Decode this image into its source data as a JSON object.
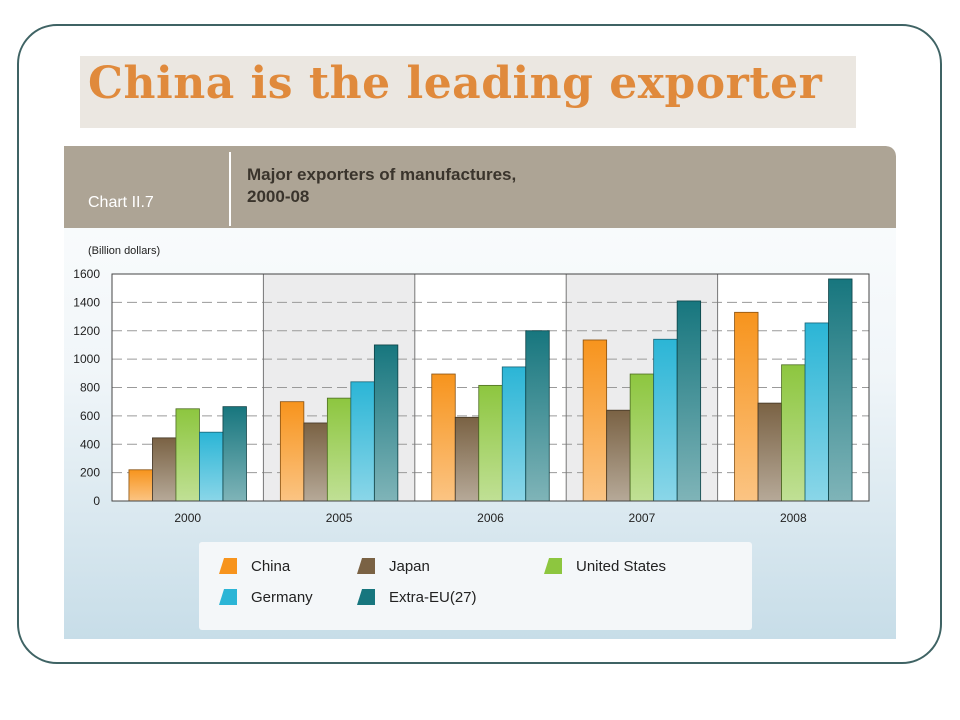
{
  "slide": {
    "title": "China is the leading exporter"
  },
  "chart_panel": {
    "label": "Chart II.7",
    "title_line1": "Major exporters of manufactures,",
    "title_line2": "2000-08"
  },
  "chart_data": {
    "type": "bar",
    "title": "Major exporters of manufactures, 2000-08",
    "ylabel": "(Billion dollars)",
    "categories": [
      "2000",
      "2005",
      "2006",
      "2007",
      "2008"
    ],
    "ylim": [
      0,
      1600
    ],
    "yticks": [
      0,
      200,
      400,
      600,
      800,
      1000,
      1200,
      1400,
      1600
    ],
    "grid": true,
    "legend_position": "bottom",
    "series": [
      {
        "name": "China",
        "color": "#f7941d",
        "values": [
          220,
          700,
          895,
          1135,
          1330
        ]
      },
      {
        "name": "Japan",
        "color": "#7a6244",
        "values": [
          445,
          550,
          590,
          640,
          690
        ]
      },
      {
        "name": "United States",
        "color": "#8dc63f",
        "values": [
          650,
          725,
          815,
          895,
          960
        ]
      },
      {
        "name": "Germany",
        "color": "#2bb5d6",
        "values": [
          485,
          840,
          945,
          1140,
          1255
        ]
      },
      {
        "name": "Extra-EU(27)",
        "color": "#17767e",
        "values": [
          665,
          1100,
          1200,
          1410,
          1565
        ]
      }
    ]
  }
}
